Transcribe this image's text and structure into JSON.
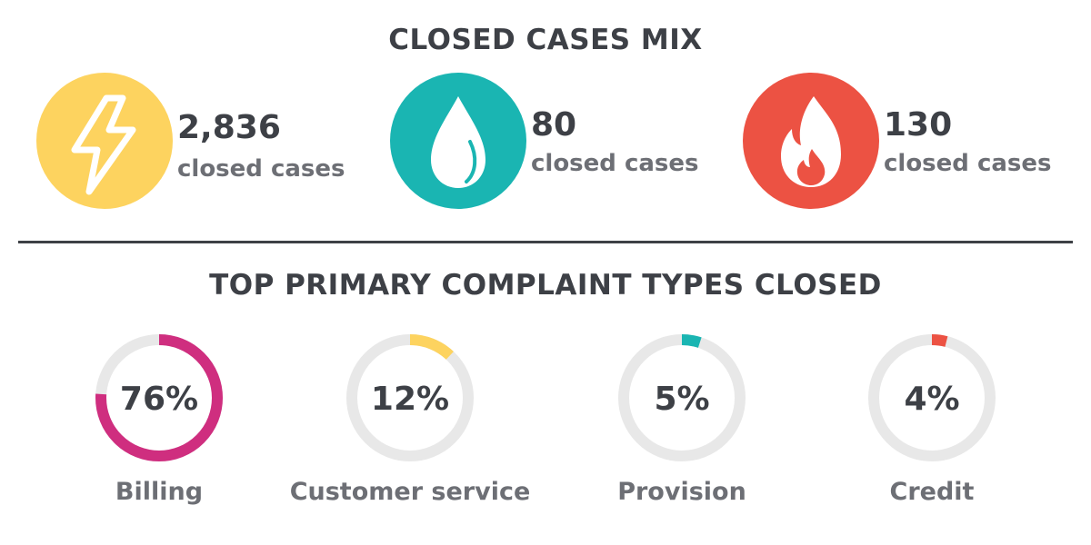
{
  "title": "CLOSED CASES MIX",
  "stats": [
    {
      "value": "2,836",
      "label": "closed cases",
      "color": "#fdd35f",
      "icon": "lightning-bolt-icon"
    },
    {
      "value": "80",
      "label": "closed cases",
      "color": "#1ab5b2",
      "icon": "water-drop-icon"
    },
    {
      "value": "130",
      "label": "closed cases",
      "color": "#ec5243",
      "icon": "flame-icon"
    }
  ],
  "chart_data": {
    "type": "pie",
    "title": "TOP PRIMARY COMPLAINT TYPES CLOSED",
    "categories": [
      "Billing",
      "Customer service",
      "Provision",
      "Credit"
    ],
    "values": [
      76,
      12,
      5,
      4
    ],
    "value_labels": [
      "76%",
      "12%",
      "5%",
      "4%"
    ],
    "colors": [
      "#cf2e7f",
      "#fdd35f",
      "#1ab5b2",
      "#ec5243"
    ],
    "track_color": "#e8e8e8",
    "unit": "%"
  }
}
